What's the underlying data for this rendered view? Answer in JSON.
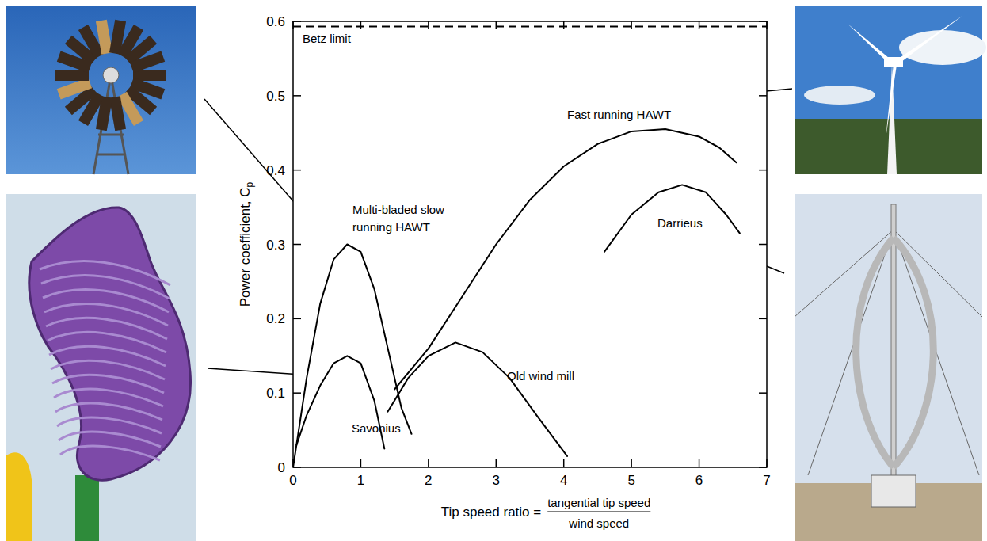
{
  "chart_data": {
    "type": "line",
    "xlabel": {
      "text": "Tip speed ratio =",
      "numerator": "tangential tip speed",
      "denominator": "wind speed"
    },
    "ylabel": "Power coefficient, Cp",
    "xlim": [
      0,
      7
    ],
    "ylim": [
      0,
      0.6
    ],
    "xticks": [
      0,
      1,
      2,
      3,
      4,
      5,
      6,
      7
    ],
    "yticks": [
      0,
      0.1,
      0.2,
      0.3,
      0.4,
      0.5,
      0.6
    ],
    "grid": false,
    "series": [
      {
        "name": "Betz limit",
        "color": "#000000",
        "line_style": "dashed",
        "x": [
          0,
          7
        ],
        "values": [
          0.593,
          0.593
        ]
      },
      {
        "name": "Multi-bladed slow running HAWT",
        "color": "#000000",
        "line_style": "solid",
        "x": [
          0,
          0.2,
          0.4,
          0.6,
          0.8,
          1.0,
          1.2,
          1.4,
          1.6,
          1.75
        ],
        "values": [
          0,
          0.12,
          0.22,
          0.28,
          0.3,
          0.29,
          0.24,
          0.16,
          0.08,
          0.045
        ]
      },
      {
        "name": "Savonius",
        "color": "#000000",
        "line_style": "solid",
        "x": [
          0.05,
          0.2,
          0.4,
          0.6,
          0.8,
          1.0,
          1.2,
          1.35
        ],
        "values": [
          0.03,
          0.07,
          0.11,
          0.14,
          0.15,
          0.14,
          0.09,
          0.025
        ]
      },
      {
        "name": "Old wind mill",
        "color": "#000000",
        "line_style": "solid",
        "x": [
          1.4,
          1.7,
          2.0,
          2.4,
          2.8,
          3.2,
          3.6,
          4.05
        ],
        "values": [
          0.075,
          0.12,
          0.15,
          0.168,
          0.155,
          0.12,
          0.07,
          0.015
        ]
      },
      {
        "name": "Fast running HAWT",
        "color": "#000000",
        "line_style": "solid",
        "x": [
          1.5,
          2.0,
          2.5,
          3.0,
          3.5,
          4.0,
          4.5,
          5.0,
          5.5,
          6.0,
          6.3,
          6.55
        ],
        "values": [
          0.105,
          0.16,
          0.23,
          0.3,
          0.36,
          0.405,
          0.435,
          0.452,
          0.455,
          0.445,
          0.43,
          0.41
        ]
      },
      {
        "name": "Darrieus",
        "color": "#000000",
        "line_style": "solid",
        "x": [
          4.6,
          5.0,
          5.4,
          5.75,
          6.1,
          6.4,
          6.6
        ],
        "values": [
          0.29,
          0.34,
          0.37,
          0.38,
          0.37,
          0.34,
          0.315
        ]
      }
    ]
  }
}
